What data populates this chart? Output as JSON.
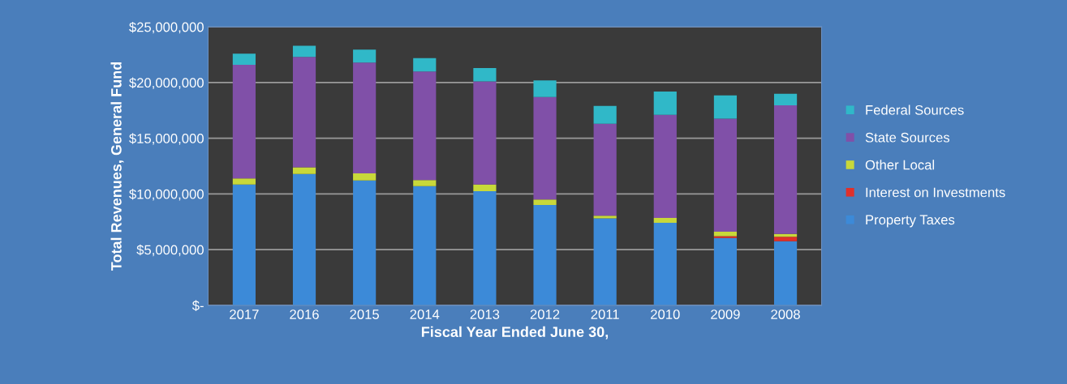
{
  "chart_data": {
    "type": "bar",
    "stacked": true,
    "xlabel": "Fiscal Year Ended June 30,",
    "ylabel": "Total Revenues, General Fund",
    "categories": [
      "2017",
      "2016",
      "2015",
      "2014",
      "2013",
      "2012",
      "2011",
      "2010",
      "2009",
      "2008"
    ],
    "series": [
      {
        "name": "Property Taxes",
        "color": "#3c8ad8",
        "values": [
          10850000,
          11800000,
          11200000,
          10700000,
          10250000,
          9000000,
          7800000,
          7400000,
          6050000,
          5750000
        ]
      },
      {
        "name": "Interest on Investments",
        "color": "#e0302a",
        "values": [
          0,
          0,
          0,
          0,
          0,
          0,
          0,
          0,
          150000,
          400000
        ]
      },
      {
        "name": "Other Local",
        "color": "#c8d83a",
        "values": [
          550000,
          600000,
          650000,
          550000,
          600000,
          500000,
          250000,
          450000,
          400000,
          250000
        ]
      },
      {
        "name": "State Sources",
        "color": "#8050a8",
        "values": [
          10200000,
          9900000,
          9950000,
          9750000,
          9250000,
          9200000,
          8250000,
          9250000,
          10150000,
          11550000
        ]
      },
      {
        "name": "Federal Sources",
        "color": "#30b8c8",
        "values": [
          1000000,
          1000000,
          1150000,
          1200000,
          1200000,
          1500000,
          1600000,
          2100000,
          2100000,
          1050000
        ]
      }
    ],
    "ylim": [
      0,
      25000000
    ],
    "yticks": [
      {
        "value": 0,
        "label": "$-"
      },
      {
        "value": 5000000,
        "label": "$5,000,000"
      },
      {
        "value": 10000000,
        "label": "$10,000,000"
      },
      {
        "value": 15000000,
        "label": "$15,000,000"
      },
      {
        "value": 20000000,
        "label": "$20,000,000"
      },
      {
        "value": 25000000,
        "label": "$25,000,000"
      }
    ],
    "grid": "y",
    "legend": "right"
  }
}
